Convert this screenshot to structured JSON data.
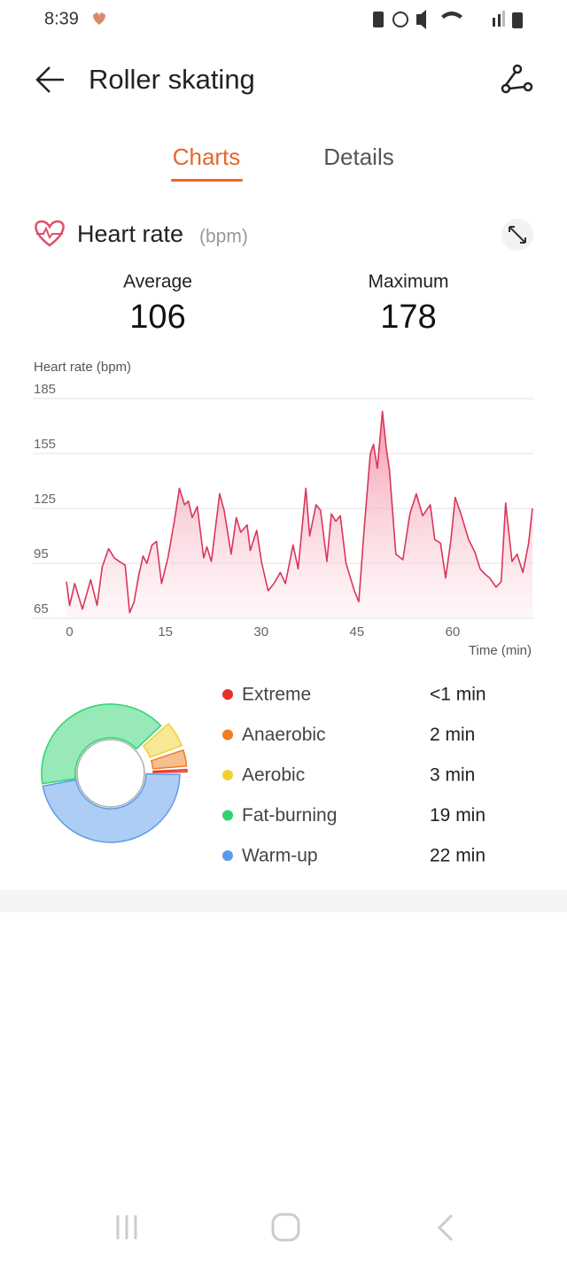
{
  "status_bar": {
    "time": "8:39"
  },
  "header": {
    "title": "Roller skating"
  },
  "tabs": [
    "Charts",
    "Details"
  ],
  "section": {
    "title": "Heart rate",
    "unit": "(bpm)"
  },
  "stats": [
    {
      "label": "Average",
      "value": 106
    },
    {
      "label": "Maximum",
      "value": 178
    }
  ],
  "chart_data": [
    {
      "type": "line",
      "y_label": "Heart rate (bpm)",
      "x_label": "Time (min)",
      "x": [
        -0.5,
        0,
        0.8,
        2,
        3.3,
        4.3,
        5.1,
        6.1,
        7,
        7.8,
        8.7,
        9.4,
        10.1,
        10.8,
        11.5,
        12.1,
        12.9,
        13.6,
        14.4,
        15.4,
        16.4,
        17.2,
        18,
        18.6,
        19.2,
        20,
        21,
        21.5,
        22.2,
        23.5,
        24.2,
        25.3,
        26.1,
        26.8,
        27.8,
        28.3,
        29.3,
        30.1,
        31.1,
        32,
        33,
        33.8,
        35,
        35.8,
        37,
        37.6,
        38.6,
        39.3,
        40.3,
        41,
        41.7,
        42.4,
        43.3,
        44.6,
        45.3,
        46.1,
        47.1,
        47.6,
        48.2,
        49,
        49.6,
        50.1,
        51.1,
        52.2,
        53.3,
        54.3,
        55.3,
        56.5,
        57.2,
        58.1,
        58.9,
        59.7,
        60.4,
        61.3,
        62.5,
        63.5,
        64.3,
        65.1,
        65.8,
        66.8,
        67.6,
        68.3,
        69.3,
        70.1,
        71,
        71.9,
        72.5
      ],
      "series": [
        {
          "name": "Heart rate",
          "color": "#d9365a",
          "values": [
            85,
            72,
            84,
            70,
            86,
            72,
            93,
            103,
            98,
            96,
            94,
            68,
            74,
            88,
            99,
            95,
            105,
            107,
            84,
            98,
            118,
            136,
            127,
            129,
            120,
            126,
            98,
            104,
            96,
            133,
            124,
            100,
            120,
            112,
            116,
            102,
            113,
            95,
            80,
            84,
            90,
            84,
            105,
            92,
            136,
            110,
            127,
            124,
            96,
            122,
            118,
            121,
            95,
            80,
            74,
            112,
            155,
            160,
            147,
            178,
            158,
            146,
            100,
            97,
            122,
            133,
            121,
            127,
            108,
            106,
            87,
            107,
            131,
            122,
            108,
            101,
            92,
            89,
            87,
            82,
            85,
            128,
            96,
            100,
            90,
            106,
            125
          ]
        }
      ],
      "xlim": [
        -0.5,
        72.5
      ],
      "ylim": [
        65,
        185
      ],
      "xticks": [
        0,
        15,
        30,
        45,
        60
      ],
      "yticks": [
        65,
        95,
        125,
        155,
        185
      ],
      "grid": true
    },
    {
      "type": "donut",
      "categories": [
        "Extreme",
        "Anaerobic",
        "Aerobic",
        "Fat-burning",
        "Warm-up"
      ],
      "values": [
        0.5,
        2,
        3,
        19,
        22
      ],
      "value_labels": [
        "<1 min",
        "2 min",
        "3 min",
        "19 min",
        "22 min"
      ],
      "colors": [
        "#e8302a",
        "#f07d22",
        "#f2d030",
        "#2fd36f",
        "#5b9bea"
      ]
    }
  ]
}
